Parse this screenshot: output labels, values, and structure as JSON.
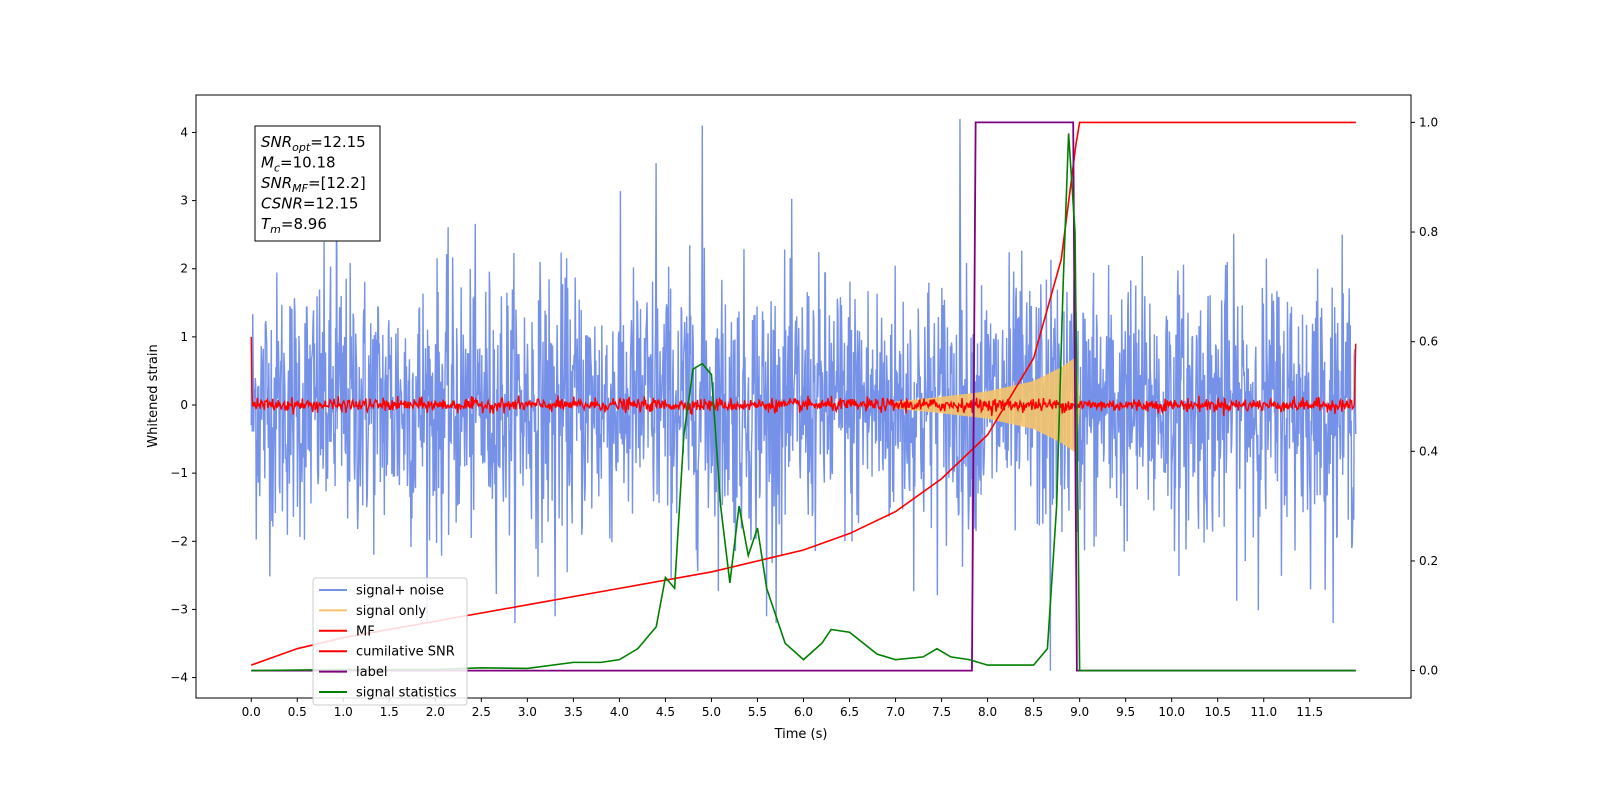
{
  "chart_data": {
    "type": "line",
    "xlabel": "Time (s)",
    "ylabel": "Whitened strain",
    "xlim": [
      -0.6,
      12.6
    ],
    "ylim": [
      -4.3,
      4.55
    ],
    "y2lim": [
      -0.05,
      1.05
    ],
    "x_ticks": [
      0.0,
      0.5,
      1.0,
      1.5,
      2.0,
      2.5,
      3.0,
      3.5,
      4.0,
      4.5,
      5.0,
      5.5,
      6.0,
      6.5,
      7.0,
      7.5,
      8.0,
      8.5,
      9.0,
      9.5,
      10.0,
      10.5,
      11.0,
      11.5
    ],
    "x_tick_labels": [
      "0.0",
      "0.5",
      "1.0",
      "1.5",
      "2.0",
      "2.5",
      "3.0",
      "3.5",
      "4.0",
      "4.5",
      "5.0",
      "5.5",
      "6.0",
      "6.5",
      "7.0",
      "7.5",
      "8.0",
      "8.5",
      "9.0",
      "9.5",
      "10.0",
      "10.5",
      "11.0",
      "11.5"
    ],
    "y_ticks": [
      -4,
      -3,
      -2,
      -1,
      0,
      1,
      2,
      3,
      4
    ],
    "y_tick_labels": [
      "−4",
      "−3",
      "−2",
      "−1",
      "0",
      "1",
      "2",
      "3",
      "4"
    ],
    "y2_ticks": [
      0.0,
      0.2,
      0.4,
      0.6,
      0.8,
      1.0
    ],
    "y2_tick_labels": [
      "0.0",
      "0.2",
      "0.4",
      "0.6",
      "0.8",
      "1.0"
    ],
    "legend_position": "lower-left",
    "annotation": {
      "position": "top-left",
      "lines": [
        {
          "sym": "SNR",
          "sub": "opt",
          "val": "=12.15"
        },
        {
          "sym": "M",
          "sub": "c",
          "val": "=10.18"
        },
        {
          "sym": "SNR",
          "sub": "MF",
          "val": "=[12.2]"
        },
        {
          "sym": "CSNR",
          "sub": "",
          "val": "=12.15"
        },
        {
          "sym": "T",
          "sub": "m",
          "val": "=8.96"
        }
      ]
    },
    "series": [
      {
        "name": "signal+ noise",
        "axis": "left",
        "color": "#7692e8",
        "kind": "noise",
        "time_range": [
          0.0,
          12.0
        ],
        "typical_abs_max": 2.3,
        "notable_peaks": [
          [
            0.93,
            4.1
          ],
          [
            4.9,
            4.1
          ],
          [
            7.7,
            4.2
          ],
          [
            4.4,
            3.55
          ],
          [
            5.6,
            -3.1
          ],
          [
            3.3,
            -3.1
          ],
          [
            8.68,
            -3.9
          ]
        ]
      },
      {
        "name": "signal only",
        "axis": "left",
        "color": "#f5c46a",
        "kind": "chirp",
        "points": [
          [
            7.0,
            0.05
          ],
          [
            7.5,
            0.12
          ],
          [
            8.0,
            0.2
          ],
          [
            8.5,
            0.35
          ],
          [
            8.8,
            0.55
          ],
          [
            8.96,
            0.7
          ],
          [
            9.0,
            0.0
          ]
        ]
      },
      {
        "name": "MF",
        "axis": "left",
        "color": "#ff0000",
        "kind": "noise",
        "time_range": [
          0.0,
          12.0
        ],
        "typical_abs_max": 0.12,
        "edge_values": [
          [
            0.0,
            1.0
          ],
          [
            12.0,
            0.9
          ]
        ]
      },
      {
        "name": "cumilative SNR",
        "axis": "right",
        "color": "#ff0000",
        "points": [
          [
            0.0,
            0.01
          ],
          [
            0.5,
            0.04
          ],
          [
            1.0,
            0.06
          ],
          [
            2.0,
            0.09
          ],
          [
            3.0,
            0.12
          ],
          [
            4.0,
            0.15
          ],
          [
            5.0,
            0.18
          ],
          [
            6.0,
            0.22
          ],
          [
            6.5,
            0.25
          ],
          [
            7.0,
            0.29
          ],
          [
            7.5,
            0.35
          ],
          [
            8.0,
            0.43
          ],
          [
            8.5,
            0.57
          ],
          [
            8.8,
            0.75
          ],
          [
            8.96,
            0.96
          ],
          [
            9.0,
            1.0
          ],
          [
            12.0,
            1.0
          ]
        ]
      },
      {
        "name": "label",
        "axis": "right",
        "color": "#800080",
        "points": [
          [
            0.0,
            0.0
          ],
          [
            7.83,
            0.0
          ],
          [
            7.87,
            1.0
          ],
          [
            8.93,
            1.0
          ],
          [
            8.97,
            0.0
          ],
          [
            12.0,
            0.0
          ]
        ]
      },
      {
        "name": "signal statistics",
        "axis": "right",
        "color": "#008000",
        "points": [
          [
            0.0,
            0.0
          ],
          [
            1.0,
            0.002
          ],
          [
            2.0,
            0.002
          ],
          [
            2.5,
            0.005
          ],
          [
            3.0,
            0.004
          ],
          [
            3.5,
            0.015
          ],
          [
            3.8,
            0.015
          ],
          [
            4.0,
            0.02
          ],
          [
            4.2,
            0.04
          ],
          [
            4.4,
            0.08
          ],
          [
            4.5,
            0.17
          ],
          [
            4.6,
            0.15
          ],
          [
            4.7,
            0.43
          ],
          [
            4.8,
            0.55
          ],
          [
            4.9,
            0.56
          ],
          [
            5.0,
            0.54
          ],
          [
            5.1,
            0.3
          ],
          [
            5.2,
            0.16
          ],
          [
            5.3,
            0.3
          ],
          [
            5.4,
            0.21
          ],
          [
            5.5,
            0.26
          ],
          [
            5.6,
            0.15
          ],
          [
            5.8,
            0.05
          ],
          [
            6.0,
            0.02
          ],
          [
            6.2,
            0.05
          ],
          [
            6.3,
            0.075
          ],
          [
            6.5,
            0.07
          ],
          [
            6.8,
            0.03
          ],
          [
            7.0,
            0.02
          ],
          [
            7.3,
            0.025
          ],
          [
            7.45,
            0.04
          ],
          [
            7.6,
            0.025
          ],
          [
            7.8,
            0.02
          ],
          [
            8.0,
            0.01
          ],
          [
            8.5,
            0.01
          ],
          [
            8.65,
            0.04
          ],
          [
            8.75,
            0.3
          ],
          [
            8.82,
            0.7
          ],
          [
            8.88,
            0.98
          ],
          [
            8.95,
            0.8
          ],
          [
            9.0,
            0.0
          ],
          [
            12.0,
            0.0
          ]
        ]
      }
    ]
  }
}
